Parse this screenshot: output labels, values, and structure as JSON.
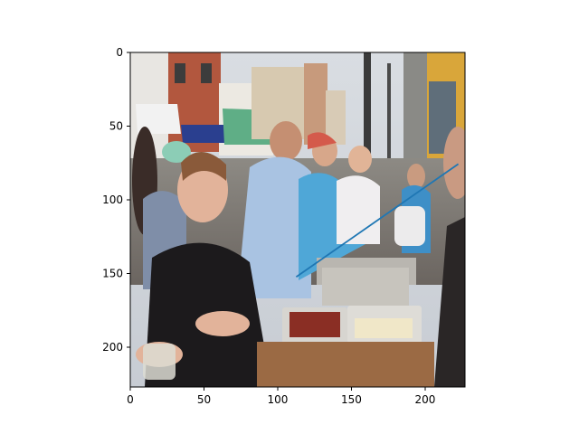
{
  "chart_data": {
    "type": "image",
    "title": "",
    "xlabel": "",
    "ylabel": "",
    "xlim": [
      0,
      227
    ],
    "ylim": [
      227,
      0
    ],
    "x_ticks": [
      0,
      50,
      100,
      150,
      200
    ],
    "y_ticks": [
      0,
      50,
      100,
      150,
      200
    ],
    "image_description_icon": "street-food-buffet-photo",
    "overlay_line": {
      "color": "#1f77b4",
      "points": [
        [
          113,
          152
        ],
        [
          222,
          76
        ]
      ]
    }
  }
}
